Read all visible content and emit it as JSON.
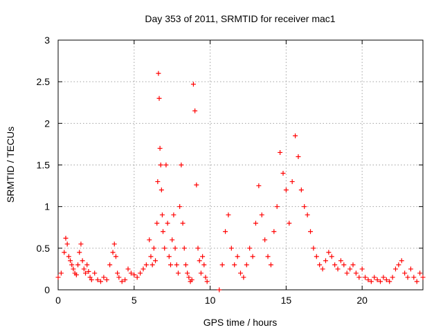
{
  "chart_data": {
    "type": "scatter",
    "title": "Day 353 of 2011, SRMTID for receiver mac1",
    "xlabel": "GPS time / hours",
    "ylabel": "SRMTID / TECUs",
    "xlim": [
      0,
      24
    ],
    "ylim": [
      0,
      3
    ],
    "xticks": [
      0,
      5,
      10,
      15,
      20
    ],
    "xtick_labels": [
      "0",
      "5",
      "10",
      "15",
      "20"
    ],
    "yticks": [
      0,
      0.5,
      1,
      1.5,
      2,
      2.5,
      3
    ],
    "ytick_labels": [
      "0",
      "0.5",
      "1",
      "1.5",
      "2",
      "2.5",
      "3"
    ],
    "grid": true,
    "marker": "+",
    "series": [
      {
        "name": "SRMTID",
        "color": "#ff0000",
        "x": [
          0.0,
          0.2,
          0.4,
          0.5,
          0.6,
          0.7,
          0.8,
          0.9,
          1.0,
          1.1,
          1.2,
          1.3,
          1.4,
          1.5,
          1.6,
          1.7,
          1.8,
          1.9,
          2.0,
          2.1,
          2.2,
          2.4,
          2.6,
          2.8,
          3.0,
          3.2,
          3.4,
          3.6,
          3.7,
          3.8,
          3.9,
          4.0,
          4.2,
          4.4,
          4.6,
          4.8,
          5.0,
          5.2,
          5.4,
          5.6,
          5.8,
          6.0,
          6.1,
          6.2,
          6.3,
          6.4,
          6.5,
          6.55,
          6.6,
          6.65,
          6.7,
          6.75,
          6.8,
          6.85,
          6.9,
          7.0,
          7.1,
          7.2,
          7.3,
          7.4,
          7.5,
          7.6,
          7.7,
          7.8,
          7.9,
          8.0,
          8.1,
          8.2,
          8.3,
          8.4,
          8.5,
          8.6,
          8.7,
          8.8,
          8.9,
          9.0,
          9.1,
          9.2,
          9.3,
          9.4,
          9.5,
          9.6,
          9.7,
          9.8,
          10.6,
          10.8,
          11.0,
          11.2,
          11.4,
          11.6,
          11.8,
          12.0,
          12.2,
          12.4,
          12.6,
          12.8,
          13.0,
          13.2,
          13.4,
          13.6,
          13.8,
          14.0,
          14.2,
          14.4,
          14.6,
          14.8,
          15.0,
          15.2,
          15.4,
          15.6,
          15.8,
          16.0,
          16.2,
          16.4,
          16.6,
          16.8,
          17.0,
          17.2,
          17.4,
          17.6,
          17.8,
          18.0,
          18.2,
          18.4,
          18.6,
          18.8,
          19.0,
          19.2,
          19.4,
          19.6,
          19.8,
          20.0,
          20.2,
          20.4,
          20.6,
          20.8,
          21.0,
          21.2,
          21.4,
          21.6,
          21.8,
          22.0,
          22.2,
          22.4,
          22.6,
          22.8,
          23.0,
          23.2,
          23.4,
          23.6,
          23.8,
          24.0
        ],
        "y": [
          0.15,
          0.2,
          0.45,
          0.62,
          0.55,
          0.4,
          0.35,
          0.3,
          0.25,
          0.2,
          0.18,
          0.3,
          0.45,
          0.55,
          0.35,
          0.25,
          0.2,
          0.3,
          0.22,
          0.15,
          0.12,
          0.2,
          0.12,
          0.1,
          0.15,
          0.12,
          0.3,
          0.45,
          0.55,
          0.4,
          0.2,
          0.15,
          0.1,
          0.12,
          0.25,
          0.2,
          0.18,
          0.15,
          0.2,
          0.25,
          0.3,
          0.6,
          0.4,
          0.3,
          0.5,
          0.35,
          0.8,
          1.3,
          2.6,
          2.3,
          1.7,
          1.5,
          1.2,
          0.9,
          0.7,
          0.5,
          1.5,
          0.8,
          0.4,
          0.3,
          0.6,
          0.9,
          0.5,
          0.3,
          0.2,
          1.0,
          1.5,
          0.8,
          0.5,
          0.3,
          0.2,
          0.15,
          0.1,
          0.12,
          2.47,
          2.15,
          1.26,
          0.5,
          0.35,
          0.2,
          0.4,
          0.3,
          0.15,
          0.1,
          0.0,
          0.3,
          0.7,
          0.9,
          0.5,
          0.3,
          0.4,
          0.2,
          0.15,
          0.3,
          0.5,
          0.4,
          0.8,
          1.25,
          0.9,
          0.6,
          0.4,
          0.3,
          0.7,
          1.0,
          1.65,
          1.4,
          1.2,
          0.8,
          1.3,
          1.85,
          1.6,
          1.2,
          1.0,
          0.9,
          0.7,
          0.5,
          0.4,
          0.3,
          0.25,
          0.35,
          0.45,
          0.4,
          0.3,
          0.25,
          0.35,
          0.3,
          0.2,
          0.25,
          0.3,
          0.2,
          0.15,
          0.25,
          0.15,
          0.12,
          0.1,
          0.15,
          0.12,
          0.1,
          0.15,
          0.12,
          0.1,
          0.15,
          0.25,
          0.3,
          0.35,
          0.2,
          0.15,
          0.25,
          0.15,
          0.1,
          0.2,
          0.15
        ]
      }
    ]
  }
}
